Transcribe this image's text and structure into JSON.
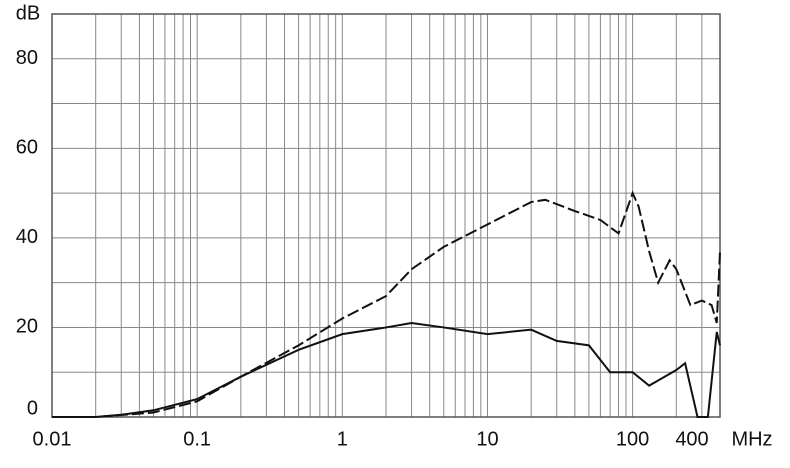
{
  "chart_data": {
    "type": "line",
    "x_label": "MHz",
    "y_label": "dB",
    "xscale": "log",
    "xlim": [
      0.01,
      400
    ],
    "xticks": [
      0.01,
      0.1,
      1,
      10,
      100,
      400
    ],
    "ylim": [
      0,
      90
    ],
    "yticks": [
      0,
      20,
      40,
      60,
      80
    ],
    "y_minor_grid": [
      10,
      30,
      50,
      70,
      90
    ],
    "grid": true,
    "series": [
      {
        "color": "#111111",
        "dash": "none",
        "x": [
          0.01,
          0.02,
          0.03,
          0.05,
          0.1,
          0.2,
          0.5,
          1,
          2,
          3,
          5,
          10,
          20,
          30,
          50,
          70,
          100,
          130,
          200,
          230,
          280,
          330,
          380,
          400
        ],
        "values": [
          0,
          0,
          0.5,
          1.5,
          4,
          9,
          15,
          18.5,
          20,
          21,
          20,
          18.5,
          19.5,
          17,
          16,
          10,
          10,
          7,
          10.5,
          12,
          0,
          0,
          19,
          16
        ]
      },
      {
        "color": "#111111",
        "dash": "12 4",
        "x": [
          0.01,
          0.02,
          0.05,
          0.1,
          0.2,
          0.5,
          1,
          2,
          3,
          5,
          10,
          20,
          25,
          40,
          60,
          80,
          100,
          110,
          130,
          150,
          180,
          200,
          250,
          300,
          350,
          380,
          400
        ],
        "values": [
          0,
          0,
          1,
          3.5,
          9,
          16,
          22,
          27,
          33,
          38,
          43,
          48,
          48.5,
          46,
          44,
          41,
          50,
          47,
          37,
          30,
          35,
          33,
          25,
          26,
          25,
          21,
          37
        ]
      }
    ]
  }
}
